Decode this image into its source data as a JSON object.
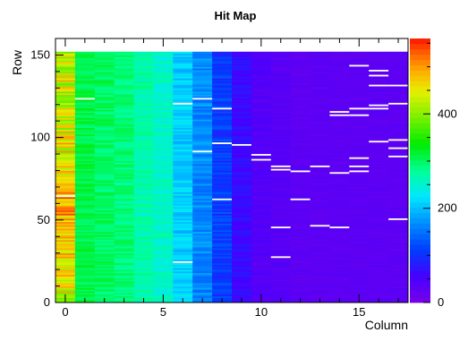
{
  "chart_data": {
    "type": "heatmap",
    "title": "Hit Map",
    "xlabel": "Column",
    "ylabel": "Row",
    "xlim": [
      -0.5,
      17.5
    ],
    "ylim": [
      0,
      160
    ],
    "x_ticks": [
      0,
      5,
      10,
      15
    ],
    "y_ticks": [
      0,
      50,
      100,
      150
    ],
    "color_scale": {
      "min": 0,
      "max": 560,
      "ticks": [
        0,
        200,
        400
      ],
      "palette": "rainbow"
    },
    "columns": [
      {
        "col": 0,
        "mean": 440,
        "amp": 60
      },
      {
        "col": 1,
        "mean": 310,
        "amp": 20
      },
      {
        "col": 2,
        "mean": 300,
        "amp": 20
      },
      {
        "col": 3,
        "mean": 290,
        "amp": 20
      },
      {
        "col": 4,
        "mean": 270,
        "amp": 20
      },
      {
        "col": 5,
        "mean": 255,
        "amp": 20
      },
      {
        "col": 6,
        "mean": 210,
        "amp": 25
      },
      {
        "col": 7,
        "mean": 165,
        "amp": 25
      },
      {
        "col": 8,
        "mean": 110,
        "amp": 25
      },
      {
        "col": 9,
        "mean": 65,
        "amp": 15
      },
      {
        "col": 10,
        "mean": 40,
        "amp": 10
      },
      {
        "col": 11,
        "mean": 35,
        "amp": 8
      },
      {
        "col": 12,
        "mean": 30,
        "amp": 8
      },
      {
        "col": 13,
        "mean": 30,
        "amp": 6
      },
      {
        "col": 14,
        "mean": 30,
        "amp": 6
      },
      {
        "col": 15,
        "mean": 30,
        "amp": 6
      },
      {
        "col": 16,
        "mean": 30,
        "amp": 6
      },
      {
        "col": 17,
        "mean": 30,
        "amp": 6
      }
    ],
    "zero_rows": 152,
    "dead_pixels": [
      [
        0,
        64
      ],
      [
        1,
        123
      ],
      [
        6,
        24
      ],
      [
        6,
        120
      ],
      [
        7,
        91
      ],
      [
        7,
        123
      ],
      [
        8,
        62
      ],
      [
        8,
        96
      ],
      [
        8,
        117
      ],
      [
        9,
        95
      ],
      [
        10,
        86
      ],
      [
        10,
        89
      ],
      [
        11,
        27
      ],
      [
        11,
        45
      ],
      [
        11,
        80
      ],
      [
        11,
        82
      ],
      [
        12,
        62
      ],
      [
        12,
        79
      ],
      [
        13,
        82
      ],
      [
        13,
        46
      ],
      [
        14,
        113
      ],
      [
        14,
        115
      ],
      [
        14,
        45
      ],
      [
        14,
        78
      ],
      [
        15,
        82
      ],
      [
        15,
        87
      ],
      [
        15,
        79
      ],
      [
        15,
        143
      ],
      [
        15,
        117
      ],
      [
        15,
        113
      ],
      [
        16,
        119
      ],
      [
        16,
        97
      ],
      [
        16,
        117
      ],
      [
        16,
        131
      ],
      [
        16,
        137
      ],
      [
        16,
        140
      ],
      [
        17,
        120
      ],
      [
        17,
        131
      ],
      [
        17,
        93
      ],
      [
        17,
        50
      ],
      [
        17,
        98
      ],
      [
        17,
        88
      ]
    ]
  }
}
